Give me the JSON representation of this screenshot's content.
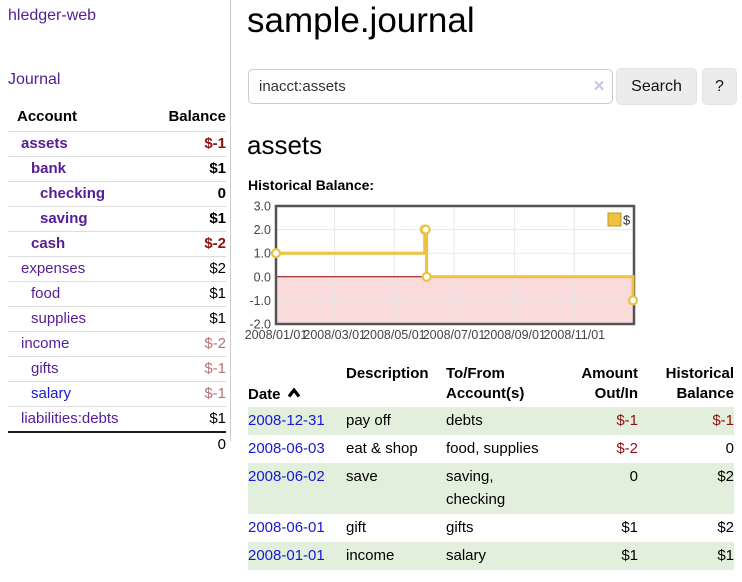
{
  "app": {
    "brand": "hledger-web"
  },
  "sidebar": {
    "journal_link": "Journal",
    "accounts_header": {
      "account": "Account",
      "balance": "Balance"
    },
    "accounts": [
      {
        "name": "assets",
        "balance": "$-1",
        "indent": 0,
        "bold": true,
        "dim": false,
        "link_state": "visited"
      },
      {
        "name": "bank",
        "balance": "$1",
        "indent": 1,
        "bold": true,
        "dim": false,
        "link_state": "visited"
      },
      {
        "name": "checking",
        "balance": "0",
        "indent": 2,
        "bold": true,
        "dim": false,
        "link_state": "visited"
      },
      {
        "name": "saving",
        "balance": "$1",
        "indent": 2,
        "bold": true,
        "dim": false,
        "link_state": "visited"
      },
      {
        "name": "cash",
        "balance": "$-2",
        "indent": 1,
        "bold": true,
        "dim": false,
        "link_state": "visited"
      },
      {
        "name": "expenses",
        "balance": "$2",
        "indent": 0,
        "bold": false,
        "dim": false,
        "link_state": "visited"
      },
      {
        "name": "food",
        "balance": "$1",
        "indent": 1,
        "bold": false,
        "dim": false,
        "link_state": "visited"
      },
      {
        "name": "supplies",
        "balance": "$1",
        "indent": 1,
        "bold": false,
        "dim": false,
        "link_state": "visited"
      },
      {
        "name": "income",
        "balance": "$-2",
        "indent": 0,
        "bold": false,
        "dim": true,
        "link_state": "visited"
      },
      {
        "name": "gifts",
        "balance": "$-1",
        "indent": 1,
        "bold": false,
        "dim": true,
        "link_state": "visited"
      },
      {
        "name": "salary",
        "balance": "$-1",
        "indent": 1,
        "bold": false,
        "dim": true,
        "link_state": "unvisited"
      },
      {
        "name": "liabilities:debts",
        "balance": "$1",
        "indent": 0,
        "bold": false,
        "dim": false,
        "link_state": "visited"
      }
    ],
    "total": "0"
  },
  "header": {
    "title": "sample.journal"
  },
  "search": {
    "value": "inacct:assets",
    "clear_icon": "×",
    "button_label": "Search",
    "help_label": "?"
  },
  "account_page": {
    "title": "assets",
    "chart_heading": "Historical Balance:"
  },
  "chart_data": {
    "type": "line",
    "step": true,
    "title": "Historical Balance:",
    "legend": [
      {
        "name": "$",
        "color": "#EDC240"
      }
    ],
    "legend_position": "top-right",
    "series": [
      {
        "name": "$",
        "color": "#EDC240",
        "points": [
          {
            "x": "2008-01-01",
            "y": 1
          },
          {
            "x": "2008-06-01",
            "y": 2
          },
          {
            "x": "2008-06-02",
            "y": 2
          },
          {
            "x": "2008-06-03",
            "y": 0
          },
          {
            "x": "2008-12-31",
            "y": -1
          }
        ]
      }
    ],
    "x_ticks": [
      "2008/01/01",
      "2008/03/01",
      "2008/05/01",
      "2008/07/01",
      "2008/09/01",
      "2008/11/01"
    ],
    "y_ticks": [
      "3.0",
      "2.0",
      "1.0",
      "0.0",
      "-1.0",
      "-2.0"
    ],
    "ylim": [
      -2,
      3
    ],
    "x_min": "2008-01-01",
    "x_max": "2009-01-01",
    "grid": true,
    "negative_region_color": "#f9dbdb",
    "zero_line_color": "#8b0000",
    "border_color": "#545454",
    "grid_color": "#e6e6e6",
    "axis_text_color": "#444444"
  },
  "register": {
    "headers": [
      "Date",
      "Description",
      "To/From\nAccount(s)",
      "Amount\nOut/In",
      "Historical\nBalance"
    ],
    "sort_column": "Date",
    "sort_direction": "ascending",
    "rows": [
      {
        "date": "2008-12-31",
        "description": "pay off",
        "accounts": "debts",
        "amount": "$-1",
        "balance": "$-1"
      },
      {
        "date": "2008-06-03",
        "description": "eat & shop",
        "accounts": "food, supplies",
        "amount": "$-2",
        "balance": "0"
      },
      {
        "date": "2008-06-02",
        "description": "save",
        "accounts": "saving,\nchecking",
        "amount": "0",
        "balance": "$2"
      },
      {
        "date": "2008-06-01",
        "description": "gift",
        "accounts": "gifts",
        "amount": "$1",
        "balance": "$2"
      },
      {
        "date": "2008-01-01",
        "description": "income",
        "accounts": "salary",
        "amount": "$1",
        "balance": "$1"
      }
    ]
  }
}
